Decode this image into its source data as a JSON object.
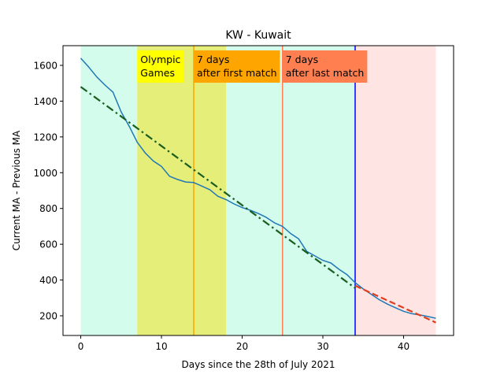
{
  "chart_data": {
    "type": "line",
    "title": "KW - Kuwait",
    "xlabel": "Days since the 28th of July 2021",
    "ylabel": "Current MA - Previous MA",
    "xlim": [
      -2.2,
      46.2
    ],
    "ylim": [
      90,
      1710
    ],
    "grid": false,
    "x_ticks": [
      0,
      10,
      20,
      30,
      40
    ],
    "y_ticks": [
      200,
      400,
      600,
      800,
      1000,
      1200,
      1400,
      1600
    ],
    "regions": [
      {
        "x0": 0,
        "x1": 34,
        "color": "#d4fcec"
      },
      {
        "x0": 34,
        "x1": 44,
        "color": "#ffe4e4"
      },
      {
        "x0": 7,
        "x1": 18,
        "color": "#e6ee7a"
      }
    ],
    "vlines": [
      {
        "x": 14,
        "color": "#ffa500"
      },
      {
        "x": 25,
        "color": "#ff7f50"
      },
      {
        "x": 34,
        "color": "#0000ff"
      }
    ],
    "annotations": [
      {
        "x": 7,
        "lines": [
          "Olympic",
          "Games"
        ],
        "bg": "#ffff00"
      },
      {
        "x": 14,
        "lines": [
          "7 days",
          "after first match"
        ],
        "bg": "#ffa500"
      },
      {
        "x": 25,
        "lines": [
          "7 days",
          "after last match"
        ],
        "bg": "#ff7f50"
      }
    ],
    "series": [
      {
        "style": "solid",
        "color": "#1f77b4",
        "x": [
          0,
          1,
          2,
          3,
          4,
          5,
          6,
          7,
          8,
          9,
          10,
          11,
          12,
          13,
          14,
          15,
          16,
          17,
          18,
          19,
          20,
          21,
          22,
          23,
          24,
          25,
          26,
          27,
          28,
          29,
          30,
          31,
          32,
          33,
          34,
          35,
          36,
          37,
          38,
          39,
          40,
          41,
          42,
          43,
          44
        ],
        "y": [
          1640,
          1590,
          1535,
          1490,
          1450,
          1340,
          1260,
          1170,
          1110,
          1065,
          1035,
          980,
          962,
          948,
          945,
          925,
          905,
          868,
          850,
          825,
          805,
          790,
          772,
          750,
          720,
          700,
          660,
          630,
          560,
          535,
          510,
          495,
          460,
          430,
          385,
          350,
          320,
          290,
          265,
          245,
          225,
          212,
          205,
          196,
          186
        ]
      },
      {
        "style": "dashdot",
        "color": "#1a5e20",
        "x": [
          0,
          34
        ],
        "y": [
          1480,
          355
        ]
      },
      {
        "style": "dashed",
        "color": "#e03c1e",
        "x": [
          34,
          44
        ],
        "y": [
          368,
          162
        ]
      }
    ]
  }
}
